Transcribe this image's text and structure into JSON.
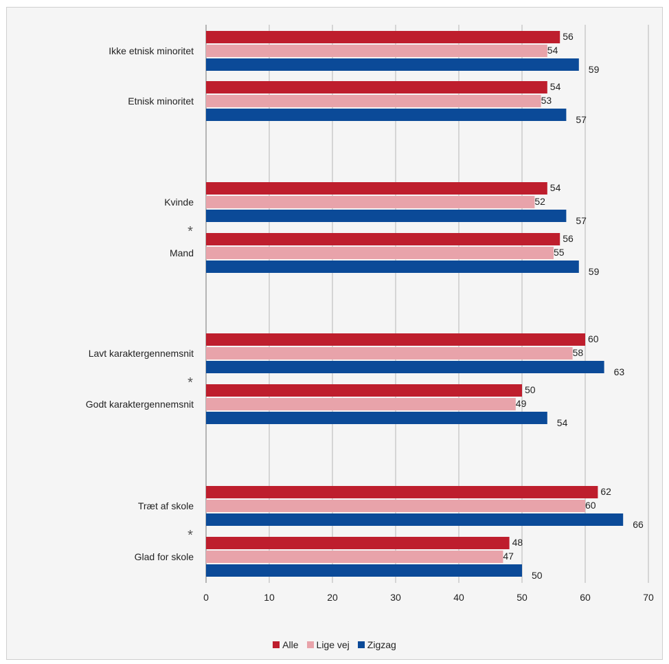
{
  "chart_data": {
    "type": "bar",
    "orientation": "horizontal",
    "categories": [
      "Ikke etnisk minoritet",
      "Etnisk minoritet",
      "Kvinde",
      "Mand",
      "Lavt karaktergennemsnit",
      "Godt karaktergennemsnit",
      "Træt af skole",
      "Glad for skole"
    ],
    "groups": [
      [
        0,
        1
      ],
      [
        2,
        3
      ],
      [
        4,
        5
      ],
      [
        6,
        7
      ]
    ],
    "significance_markers": [
      {
        "between": [
          2,
          3
        ],
        "symbol": "*"
      },
      {
        "between": [
          4,
          5
        ],
        "symbol": "*"
      },
      {
        "between": [
          6,
          7
        ],
        "symbol": "*"
      }
    ],
    "series": [
      {
        "name": "Alle",
        "color": "#be1e2d",
        "values": [
          56,
          54,
          54,
          56,
          60,
          50,
          62,
          48
        ]
      },
      {
        "name": "Lige vej",
        "color": "#e8a3aa",
        "values": [
          54,
          53,
          52,
          55,
          58,
          49,
          60,
          47
        ]
      },
      {
        "name": "Zigzag",
        "color": "#0b4a98",
        "values": [
          59,
          57,
          57,
          59,
          63,
          54,
          66,
          50
        ]
      }
    ],
    "xticks": [
      "0",
      "10",
      "20",
      "30",
      "40",
      "50",
      "60",
      "70"
    ],
    "xlim": [
      0,
      70
    ],
    "grid": true,
    "legend_position": "bottom"
  }
}
